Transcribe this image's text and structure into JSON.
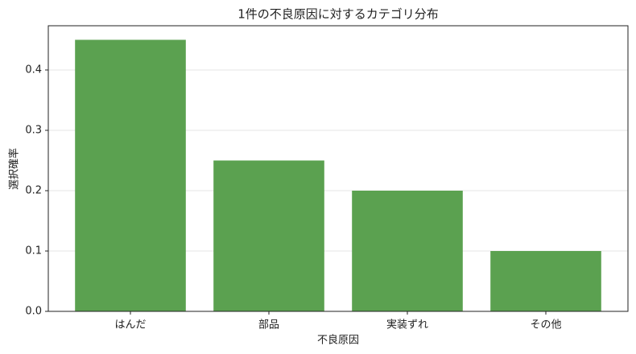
{
  "chart_data": {
    "type": "bar",
    "title": "1件の不良原因に対するカテゴリ分布",
    "x_label": "不良原因",
    "y_label": "選択確率",
    "categories": [
      "はんだ",
      "部品",
      "実装ずれ",
      "その他"
    ],
    "values": [
      0.45,
      0.25,
      0.2,
      0.1
    ],
    "color": "#5ba150",
    "ylim": [
      0,
      0.4733
    ],
    "yticks": [
      {
        "value": 0,
        "label": "0.0"
      },
      0.1,
      0.2,
      0.3,
      0.4
    ],
    "grid": true
  }
}
